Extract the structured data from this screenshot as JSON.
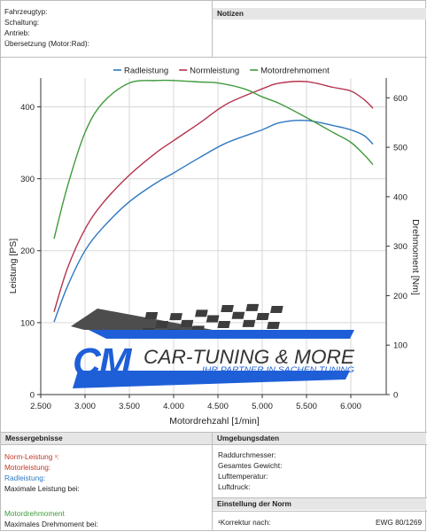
{
  "header": {
    "fields": [
      "Fahrzeugtyp:",
      "Schaltung:",
      "Antrieb:",
      "Übersetzung (Motor:Rad):"
    ],
    "notes_title": "Notizen"
  },
  "chart_data": {
    "type": "line",
    "xlabel": "Motordrehzahl [1/min]",
    "ylabel_left": "Leistung [PS]",
    "ylabel_right": "Drehmoment [Nm]",
    "x_ticks": [
      "2.500",
      "3.000",
      "3.500",
      "4.000",
      "4.500",
      "5.000",
      "5.500",
      "6.000"
    ],
    "y_left_ticks": [
      "0",
      "100",
      "200",
      "300",
      "400"
    ],
    "y_right_ticks": [
      "0",
      "100",
      "200",
      "300",
      "400",
      "500",
      "600"
    ],
    "xlim": [
      2500,
      6400
    ],
    "ylim_left": [
      0,
      440
    ],
    "ylim_right": [
      0,
      640
    ],
    "legend_position": "top",
    "series": [
      {
        "name": "Radleistung",
        "axis": "left",
        "color": "#2e78c2",
        "x": [
          2650,
          2800,
          3000,
          3200,
          3500,
          3800,
          4000,
          4300,
          4600,
          5000,
          5200,
          5500,
          5800,
          6000,
          6150,
          6250
        ],
        "y": [
          101,
          150,
          200,
          232,
          268,
          294,
          308,
          330,
          350,
          368,
          378,
          381,
          374,
          368,
          360,
          348
        ]
      },
      {
        "name": "Normleistung",
        "axis": "left",
        "color": "#b4344e",
        "x": [
          2650,
          2800,
          3000,
          3200,
          3500,
          3800,
          4000,
          4300,
          4600,
          5000,
          5200,
          5500,
          5800,
          6000,
          6150,
          6250
        ],
        "y": [
          115,
          175,
          230,
          266,
          305,
          336,
          353,
          378,
          404,
          425,
          433,
          435,
          427,
          422,
          410,
          398
        ]
      },
      {
        "name": "Motordrehmoment",
        "axis": "right",
        "color": "#3f9a3c",
        "x": [
          2650,
          2800,
          3000,
          3200,
          3500,
          3800,
          4000,
          4300,
          4500,
          4800,
          5000,
          5200,
          5500,
          5800,
          6000,
          6150,
          6250
        ],
        "y": [
          315,
          420,
          530,
          590,
          630,
          635,
          635,
          632,
          630,
          618,
          602,
          588,
          560,
          530,
          510,
          485,
          465
        ]
      }
    ]
  },
  "logo": {
    "initials": "CM",
    "name": "CAR-TUNING & MORE",
    "slogan": "IHR PARTNER IN SACHEN TUNING",
    "blue": "#1e5fd8"
  },
  "results": {
    "title": "Messergebnisse",
    "lines": [
      {
        "label": "Norm-Leistung ¹:",
        "color": "#c0392b"
      },
      {
        "label": "Motorleistung:",
        "color": "#c0392b"
      },
      {
        "label": "Radleistung:",
        "color": "#2e78c2"
      },
      {
        "label": "Maximale Leistung bei:",
        "color": "#222222"
      },
      {
        "label": "Motordrehmoment",
        "color": "#3f9a3c"
      },
      {
        "label": "Maximales Drehmoment bei:",
        "color": "#222222"
      }
    ]
  },
  "env": {
    "title": "Umgebungsdaten",
    "lines": [
      "Raddurchmesser:",
      "Gesamtes Gewicht:",
      "Lufttemperatur:",
      "Luftdruck:"
    ]
  },
  "norm": {
    "title": "Einstellung der Norm",
    "label": "¹Korrektur nach:",
    "value": "EWG 80/1269"
  }
}
